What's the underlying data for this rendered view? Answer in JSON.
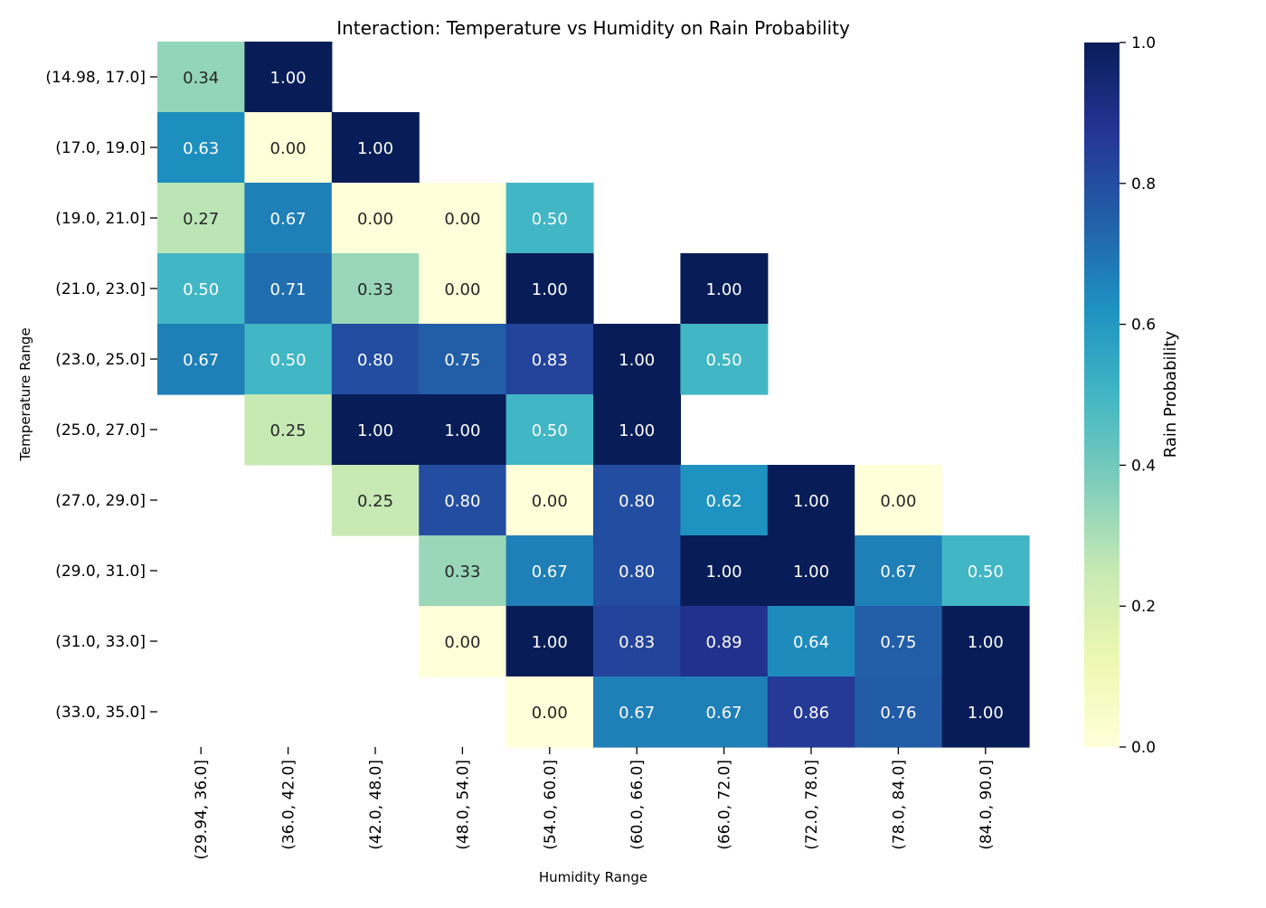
{
  "chart_data": {
    "type": "heatmap",
    "title": "Interaction: Temperature vs Humidity on Rain Probability",
    "xlabel": "Humidity Range",
    "ylabel": "Temperature Range",
    "x_categories": [
      "(29.94, 36.0]",
      "(36.0, 42.0]",
      "(42.0, 48.0]",
      "(48.0, 54.0]",
      "(54.0, 60.0]",
      "(60.0, 66.0]",
      "(66.0, 72.0]",
      "(72.0, 78.0]",
      "(78.0, 84.0]",
      "(84.0, 90.0]"
    ],
    "y_categories": [
      "(14.98, 17.0]",
      "(17.0, 19.0]",
      "(19.0, 21.0]",
      "(21.0, 23.0]",
      "(23.0, 25.0]",
      "(25.0, 27.0]",
      "(27.0, 29.0]",
      "(29.0, 31.0]",
      "(31.0, 33.0]",
      "(33.0, 35.0]"
    ],
    "values": [
      [
        0.34,
        1.0,
        null,
        null,
        null,
        null,
        null,
        null,
        null,
        null
      ],
      [
        0.63,
        0.0,
        1.0,
        null,
        null,
        null,
        null,
        null,
        null,
        null
      ],
      [
        0.27,
        0.67,
        0.0,
        0.0,
        0.5,
        null,
        null,
        null,
        null,
        null
      ],
      [
        0.5,
        0.71,
        0.33,
        0.0,
        1.0,
        null,
        1.0,
        null,
        null,
        null
      ],
      [
        0.67,
        0.5,
        0.8,
        0.75,
        0.83,
        1.0,
        0.5,
        null,
        null,
        null
      ],
      [
        null,
        0.25,
        1.0,
        1.0,
        0.5,
        1.0,
        null,
        null,
        null,
        null
      ],
      [
        null,
        null,
        0.25,
        0.8,
        0.0,
        0.8,
        0.62,
        1.0,
        0.0,
        null
      ],
      [
        null,
        null,
        null,
        0.33,
        0.67,
        0.8,
        1.0,
        1.0,
        0.67,
        0.5
      ],
      [
        null,
        null,
        null,
        0.0,
        1.0,
        0.83,
        0.89,
        0.64,
        0.75,
        1.0
      ],
      [
        null,
        null,
        null,
        null,
        0.0,
        0.67,
        0.67,
        0.86,
        0.76,
        1.0
      ]
    ],
    "colorbar": {
      "label": "Rain Probability",
      "range": [
        0.0,
        1.0
      ],
      "ticks": [
        "0.0",
        "0.2",
        "0.4",
        "0.6",
        "0.8",
        "1.0"
      ],
      "colormap": "YlGnBu"
    }
  }
}
